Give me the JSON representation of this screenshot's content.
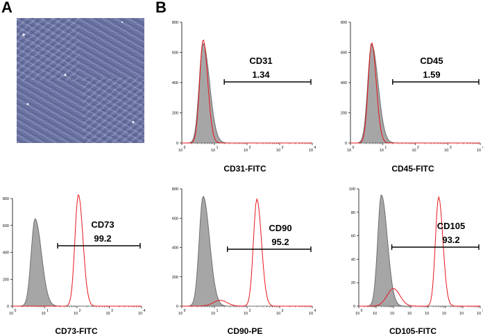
{
  "panels": {
    "a": {
      "letter": "A"
    },
    "b": {
      "letter": "B"
    }
  },
  "colors": {
    "control_fill": "#a6a6a6",
    "control_stroke": "#6e6e6e",
    "sample_stroke": "#e8141b",
    "micrograph_base": "#6a73a2"
  },
  "chart_data": [
    {
      "type": "area",
      "id": "cd73",
      "xlabel": "CD73-FITC",
      "marker_name": "CD73",
      "marker_value": "99.2",
      "x_scale": "log",
      "xlim": [
        1,
        10000
      ],
      "xtick_labels": [
        "0",
        "1",
        "2",
        "3",
        "4"
      ],
      "ylim": [
        0,
        800
      ],
      "yticks": [
        0,
        200,
        400,
        600,
        800
      ],
      "gate": [
        25,
        10000
      ],
      "control_peak": {
        "x": 5,
        "y": 650
      },
      "sample_peak": {
        "x": 110,
        "y": 830
      }
    },
    {
      "type": "area",
      "id": "cd31",
      "xlabel": "CD31-FITC",
      "marker_name": "CD31",
      "marker_value": "1.34",
      "x_scale": "log",
      "xlim": [
        1,
        10000
      ],
      "xtick_labels": [
        "0",
        "1",
        "2",
        "3",
        "4"
      ],
      "ylim": [
        0,
        800
      ],
      "yticks": [
        0,
        200,
        400,
        600,
        800
      ],
      "gate": [
        20,
        10000
      ],
      "control_peak": {
        "x": 4.5,
        "y": 660
      },
      "sample_peak": {
        "x": 4.5,
        "y": 685
      }
    },
    {
      "type": "area",
      "id": "cd45",
      "xlabel": "CD45-FITC",
      "marker_name": "CD45",
      "marker_value": "1.59",
      "x_scale": "log",
      "xlim": [
        1,
        10000
      ],
      "xtick_labels": [
        "0",
        "1",
        "2",
        "3",
        "4"
      ],
      "ylim": [
        0,
        800
      ],
      "yticks": [
        0,
        200,
        400,
        600,
        800
      ],
      "gate": [
        20,
        10000
      ],
      "control_peak": {
        "x": 4.5,
        "y": 655
      },
      "sample_peak": {
        "x": 4.5,
        "y": 665
      }
    },
    {
      "type": "area",
      "id": "cd90",
      "xlabel": "CD90-PE",
      "marker_name": "CD90",
      "marker_value": "95.2",
      "x_scale": "log",
      "xlim": [
        1,
        10000
      ],
      "xtick_labels": [
        "0",
        "1",
        "2",
        "3",
        "4"
      ],
      "ylim": [
        0,
        800
      ],
      "yticks": [
        0,
        200,
        400,
        600,
        800
      ],
      "gate": [
        25,
        10000
      ],
      "control_peak": {
        "x": 4.5,
        "y": 750
      },
      "sample_peak": {
        "x": 200,
        "y": 730
      },
      "sample_shoulder": {
        "x": 15,
        "y": 40
      }
    },
    {
      "type": "area",
      "id": "cd105",
      "xlabel": "CD105-FITC",
      "marker_name": "CD105",
      "marker_value": "93.2",
      "x_scale": "log",
      "xlim": [
        1,
        10000000
      ],
      "xtick_labels": [
        "0",
        "",
        "",
        "",
        "",
        "",
        "",
        "7"
      ],
      "ylim": [
        0,
        100
      ],
      "yticks": [
        0,
        20,
        40,
        60,
        80,
        100
      ],
      "gate": [
        80,
        10000000
      ],
      "control_peak": {
        "x": 20,
        "y": 95
      },
      "sample_peak": {
        "x": 40000,
        "y": 93
      },
      "sample_shoulder": {
        "x": 100,
        "y": 15
      }
    }
  ]
}
